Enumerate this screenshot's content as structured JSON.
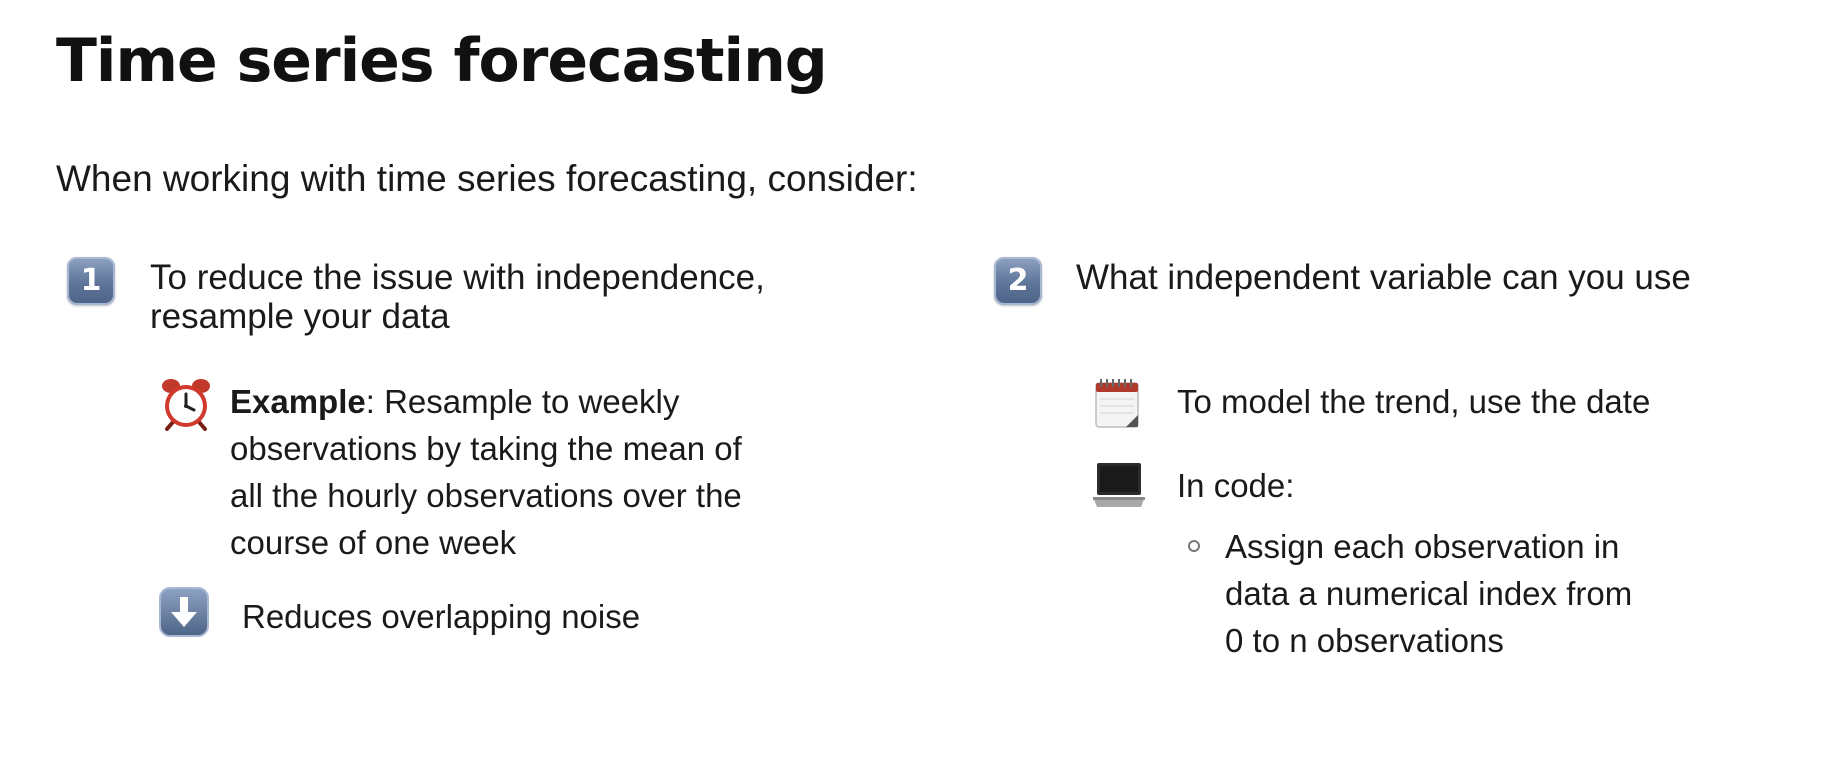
{
  "slide": {
    "title": "Time series forecasting",
    "intro": "When working with time series forecasting, consider:"
  },
  "left": {
    "badge": "1",
    "heading_line1": "To reduce the issue with independence,",
    "heading_line2": "resample your data",
    "example_label": "Example",
    "example_rest": ": Resample to weekly",
    "example_line2": "observations by taking the mean of",
    "example_line3": "all the hourly observations over the",
    "example_line4": "course of one week",
    "result": "Reduces overlapping noise",
    "icons": [
      "alarm-clock-icon",
      "down-arrow-icon"
    ]
  },
  "right": {
    "badge": "2",
    "heading": "What independent variable can you use",
    "trend": "To model the trend, use the date",
    "code_label": "In code:",
    "bullet_line1": "Assign each observation in",
    "bullet_line2": "data a numerical index from",
    "bullet_line3": "0 to n observations",
    "icons": [
      "calendar-icon",
      "laptop-icon"
    ]
  }
}
